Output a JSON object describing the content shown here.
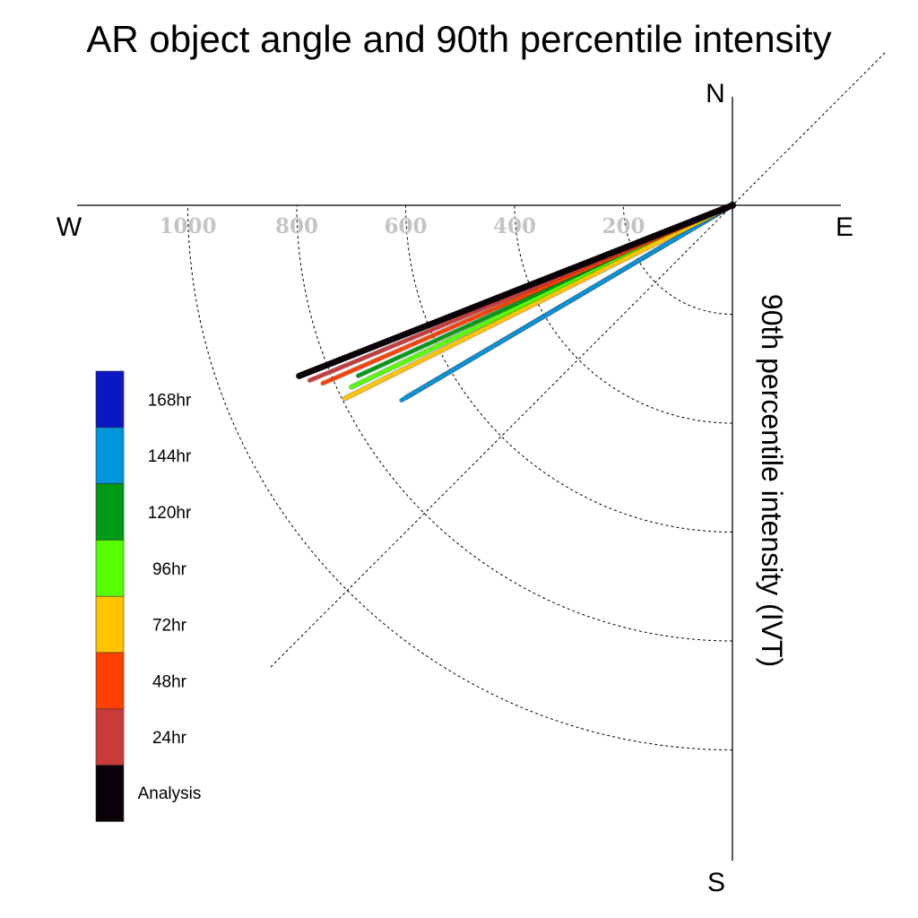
{
  "chart_data": {
    "type": "polar-vector",
    "title": "AR object angle and 90th percentile intensity",
    "ylabel": "90th percentile intensity (IVT)",
    "compass": {
      "north": "N",
      "south": "S",
      "east": "E",
      "west": "W"
    },
    "radial_ticks": [
      200,
      400,
      600,
      800,
      1000
    ],
    "radial_tick_labels": [
      "200",
      "400",
      "600",
      "800",
      "1000"
    ],
    "r_max": 1200,
    "grid": true,
    "legend_position": "bottom-left",
    "series": [
      {
        "name": "168hr",
        "color": "#0a17c2",
        "angle_deg": 239.5,
        "intensity": 695
      },
      {
        "name": "144hr",
        "color": "#0096dc",
        "angle_deg": 239.5,
        "intensity": 705
      },
      {
        "name": "120hr",
        "color": "#009b14",
        "angle_deg": 245.5,
        "intensity": 755
      },
      {
        "name": "96hr",
        "color": "#55ff00",
        "angle_deg": 244.5,
        "intensity": 775
      },
      {
        "name": "72hr",
        "color": "#ffc300",
        "angle_deg": 243.5,
        "intensity": 795
      },
      {
        "name": "48hr",
        "color": "#ff4000",
        "angle_deg": 246.5,
        "intensity": 820
      },
      {
        "name": "24hr",
        "color": "#c93a3a",
        "angle_deg": 247.5,
        "intensity": 840
      },
      {
        "name": "Analysis",
        "color": "#0a0008",
        "angle_deg": 248.5,
        "intensity": 855
      }
    ]
  }
}
